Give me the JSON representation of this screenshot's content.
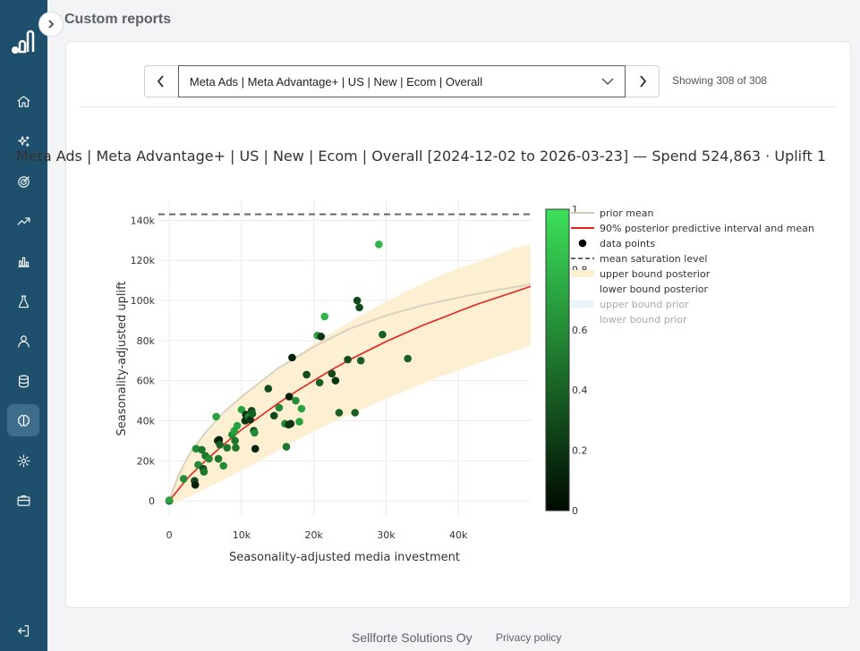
{
  "app": {
    "page_title": "Custom reports"
  },
  "selector": {
    "value": "Meta Ads | Meta Advantage+ | US | New | Ecom | Overall",
    "showing": "Showing 308 of 308"
  },
  "sidebar": {
    "items": [
      {
        "name": "home-icon"
      },
      {
        "name": "sparkles-icon"
      },
      {
        "name": "target-icon"
      },
      {
        "name": "trending-up-icon"
      },
      {
        "name": "bar-chart-icon"
      },
      {
        "name": "flask-icon"
      },
      {
        "name": "user-icon"
      },
      {
        "name": "database-icon"
      },
      {
        "name": "brain-icon",
        "active": true
      },
      {
        "name": "gear-icon"
      },
      {
        "name": "briefcase-icon"
      }
    ],
    "logout": "logout-icon"
  },
  "chart_data": {
    "type": "scatter",
    "title": "Meta Ads | Meta Advantage+ | US | New | Ecom | Overall [2024-12-02 to 2026-03-23] — Spend 524,863 · Uplift 1",
    "xlabel": "Seasonality-adjusted media investment",
    "ylabel": "Seasonality-adjusted uplift",
    "xlim": [
      -1500,
      50000
    ],
    "ylim": [
      -8000,
      150000
    ],
    "x_ticks": [
      0,
      10000,
      20000,
      30000,
      40000
    ],
    "x_tick_labels": [
      "0",
      "10k",
      "20k",
      "30k",
      "40k"
    ],
    "y_ticks": [
      0,
      20000,
      40000,
      60000,
      80000,
      100000,
      120000,
      140000
    ],
    "y_tick_labels": [
      "0",
      "20k",
      "40k",
      "60k",
      "80k",
      "100k",
      "120k",
      "140k"
    ],
    "grid": true,
    "saturation_level": 143000,
    "colors": {
      "prior_mean": "#d8d2bf",
      "posterior_mean": "#e8221c",
      "interval": "#fdefd2",
      "saturation": "#666666"
    },
    "legend": {
      "placement": "right",
      "entries": [
        {
          "label": "prior mean",
          "kind": "line",
          "color": "#cfcab8",
          "muted": false
        },
        {
          "label": "90% posterior predictive interval and mean",
          "kind": "line",
          "color": "#e8221c",
          "muted": false
        },
        {
          "label": "data points",
          "kind": "dot",
          "color": "#000000",
          "muted": false
        },
        {
          "label": "mean saturation level",
          "kind": "dash",
          "color": "#666666",
          "muted": false
        },
        {
          "label": "upper bound posterior",
          "kind": "fill",
          "color": "#fdefd2",
          "muted": false
        },
        {
          "label": "lower bound posterior",
          "kind": "none",
          "color": "#ffffff",
          "muted": false
        },
        {
          "label": "upper bound prior",
          "kind": "fill",
          "color": "#e8f4f8",
          "muted": true
        },
        {
          "label": "lower bound prior",
          "kind": "none",
          "color": "#ffffff",
          "muted": true
        }
      ]
    },
    "colorbar": {
      "range": [
        0,
        1
      ],
      "ticks": [
        0,
        0.2,
        0.4,
        0.6,
        0.8,
        1
      ],
      "tick_labels": [
        "0",
        "0.2",
        "0.4",
        "0.6",
        "0.8",
        "1"
      ]
    },
    "prior_mean": [
      [
        0,
        0
      ],
      [
        1000,
        10000
      ],
      [
        2000,
        18000
      ],
      [
        3000,
        24500
      ],
      [
        5000,
        34000
      ],
      [
        7500,
        44000
      ],
      [
        10000,
        52000
      ],
      [
        15000,
        66000
      ],
      [
        20000,
        77000
      ],
      [
        25000,
        86000
      ],
      [
        30000,
        92500
      ],
      [
        35000,
        97500
      ],
      [
        40000,
        101500
      ],
      [
        45000,
        105000
      ],
      [
        50000,
        108000
      ]
    ],
    "posterior_mean": [
      [
        0,
        0
      ],
      [
        1000,
        4500
      ],
      [
        2000,
        9000
      ],
      [
        3000,
        13000
      ],
      [
        5000,
        20000
      ],
      [
        7500,
        28000
      ],
      [
        10000,
        35500
      ],
      [
        12500,
        42000
      ],
      [
        15000,
        48500
      ],
      [
        17500,
        54500
      ],
      [
        20000,
        60000
      ],
      [
        22500,
        65500
      ],
      [
        25000,
        70500
      ],
      [
        27500,
        75000
      ],
      [
        30000,
        79500
      ],
      [
        32500,
        83500
      ],
      [
        35000,
        87500
      ],
      [
        37500,
        91000
      ],
      [
        40000,
        94500
      ],
      [
        42500,
        98000
      ],
      [
        45000,
        101000
      ],
      [
        47500,
        104000
      ],
      [
        50000,
        107000
      ]
    ],
    "interval_upper": [
      [
        0,
        2000
      ],
      [
        1000,
        12000
      ],
      [
        2000,
        19000
      ],
      [
        3000,
        24500
      ],
      [
        5000,
        33000
      ],
      [
        7500,
        43000
      ],
      [
        10000,
        51500
      ],
      [
        12500,
        59000
      ],
      [
        15000,
        66000
      ],
      [
        17500,
        72000
      ],
      [
        20000,
        78500
      ],
      [
        22500,
        84000
      ],
      [
        25000,
        89500
      ],
      [
        27500,
        94500
      ],
      [
        30000,
        99500
      ],
      [
        32500,
        104000
      ],
      [
        35000,
        108500
      ],
      [
        37500,
        112500
      ],
      [
        40000,
        116000
      ],
      [
        42500,
        119000
      ],
      [
        45000,
        122500
      ],
      [
        47500,
        126000
      ],
      [
        50000,
        128000
      ]
    ],
    "interval_lower": [
      [
        0,
        -2000
      ],
      [
        1000,
        -1000
      ],
      [
        2000,
        1000
      ],
      [
        3000,
        2500
      ],
      [
        5000,
        6000
      ],
      [
        7500,
        10500
      ],
      [
        10000,
        15000
      ],
      [
        12500,
        20000
      ],
      [
        15000,
        25000
      ],
      [
        17500,
        30000
      ],
      [
        20000,
        34500
      ],
      [
        22500,
        39000
      ],
      [
        25000,
        43000
      ],
      [
        27500,
        47000
      ],
      [
        30000,
        51000
      ],
      [
        32500,
        54500
      ],
      [
        35000,
        58500
      ],
      [
        37500,
        62000
      ],
      [
        40000,
        65000
      ],
      [
        42500,
        68500
      ],
      [
        45000,
        71500
      ],
      [
        47500,
        74500
      ],
      [
        50000,
        77500
      ]
    ],
    "points": [
      [
        0,
        0,
        0.1
      ],
      [
        0,
        300,
        0.7
      ],
      [
        2000,
        11000,
        0.6
      ],
      [
        3500,
        10000,
        0.3
      ],
      [
        3700,
        26000,
        0.6
      ],
      [
        3600,
        8000,
        0.1
      ],
      [
        4000,
        18000,
        0.6
      ],
      [
        4500,
        25500,
        0.5
      ],
      [
        4700,
        16000,
        0.3
      ],
      [
        4800,
        14500,
        0.5
      ],
      [
        5000,
        22500,
        0.5
      ],
      [
        5500,
        21000,
        0.6
      ],
      [
        6500,
        42000,
        0.7
      ],
      [
        6700,
        30000,
        0.2
      ],
      [
        6800,
        21000,
        0.5
      ],
      [
        6900,
        30500,
        0.1
      ],
      [
        7000,
        28000,
        0.4
      ],
      [
        7500,
        17500,
        0.6
      ],
      [
        8000,
        26500,
        0.5
      ],
      [
        8700,
        33000,
        0.6
      ],
      [
        9000,
        35000,
        0.7
      ],
      [
        9100,
        30000,
        0.5
      ],
      [
        9200,
        26500,
        0.5
      ],
      [
        9400,
        37500,
        0.7
      ],
      [
        10000,
        45500,
        0.7
      ],
      [
        10500,
        40000,
        0.2
      ],
      [
        10600,
        43000,
        0.2
      ],
      [
        11000,
        42000,
        0.6
      ],
      [
        11200,
        40500,
        0.2
      ],
      [
        11400,
        45000,
        0.3
      ],
      [
        11500,
        43500,
        0.4
      ],
      [
        11700,
        35000,
        0.3
      ],
      [
        11800,
        34000,
        0.6
      ],
      [
        11900,
        26000,
        0.1
      ],
      [
        13700,
        56000,
        0.3
      ],
      [
        14500,
        42500,
        0.3
      ],
      [
        15200,
        46500,
        0.6
      ],
      [
        16000,
        38500,
        0.6
      ],
      [
        16200,
        27000,
        0.5
      ],
      [
        16500,
        38000,
        0.2
      ],
      [
        16600,
        52000,
        0.1
      ],
      [
        16800,
        38500,
        0.2
      ],
      [
        17000,
        71500,
        0.1
      ],
      [
        17500,
        50000,
        0.6
      ],
      [
        18000,
        39500,
        0.7
      ],
      [
        18300,
        46000,
        0.7
      ],
      [
        19000,
        63000,
        0.3
      ],
      [
        20500,
        82500,
        0.7
      ],
      [
        20800,
        59000,
        0.4
      ],
      [
        21000,
        82000,
        0.2
      ],
      [
        21500,
        92000,
        0.8
      ],
      [
        22500,
        63500,
        0.3
      ],
      [
        23000,
        60000,
        0.2
      ],
      [
        23500,
        44000,
        0.4
      ],
      [
        24700,
        70500,
        0.3
      ],
      [
        25700,
        44000,
        0.4
      ],
      [
        26000,
        100000,
        0.3
      ],
      [
        26300,
        96500,
        0.3
      ],
      [
        26500,
        70000,
        0.4
      ],
      [
        29000,
        128000,
        0.8
      ],
      [
        29500,
        83000,
        0.4
      ],
      [
        33000,
        71000,
        0.4
      ]
    ]
  },
  "footer": {
    "company": "Sellforte Solutions Oy",
    "privacy": "Privacy policy"
  }
}
